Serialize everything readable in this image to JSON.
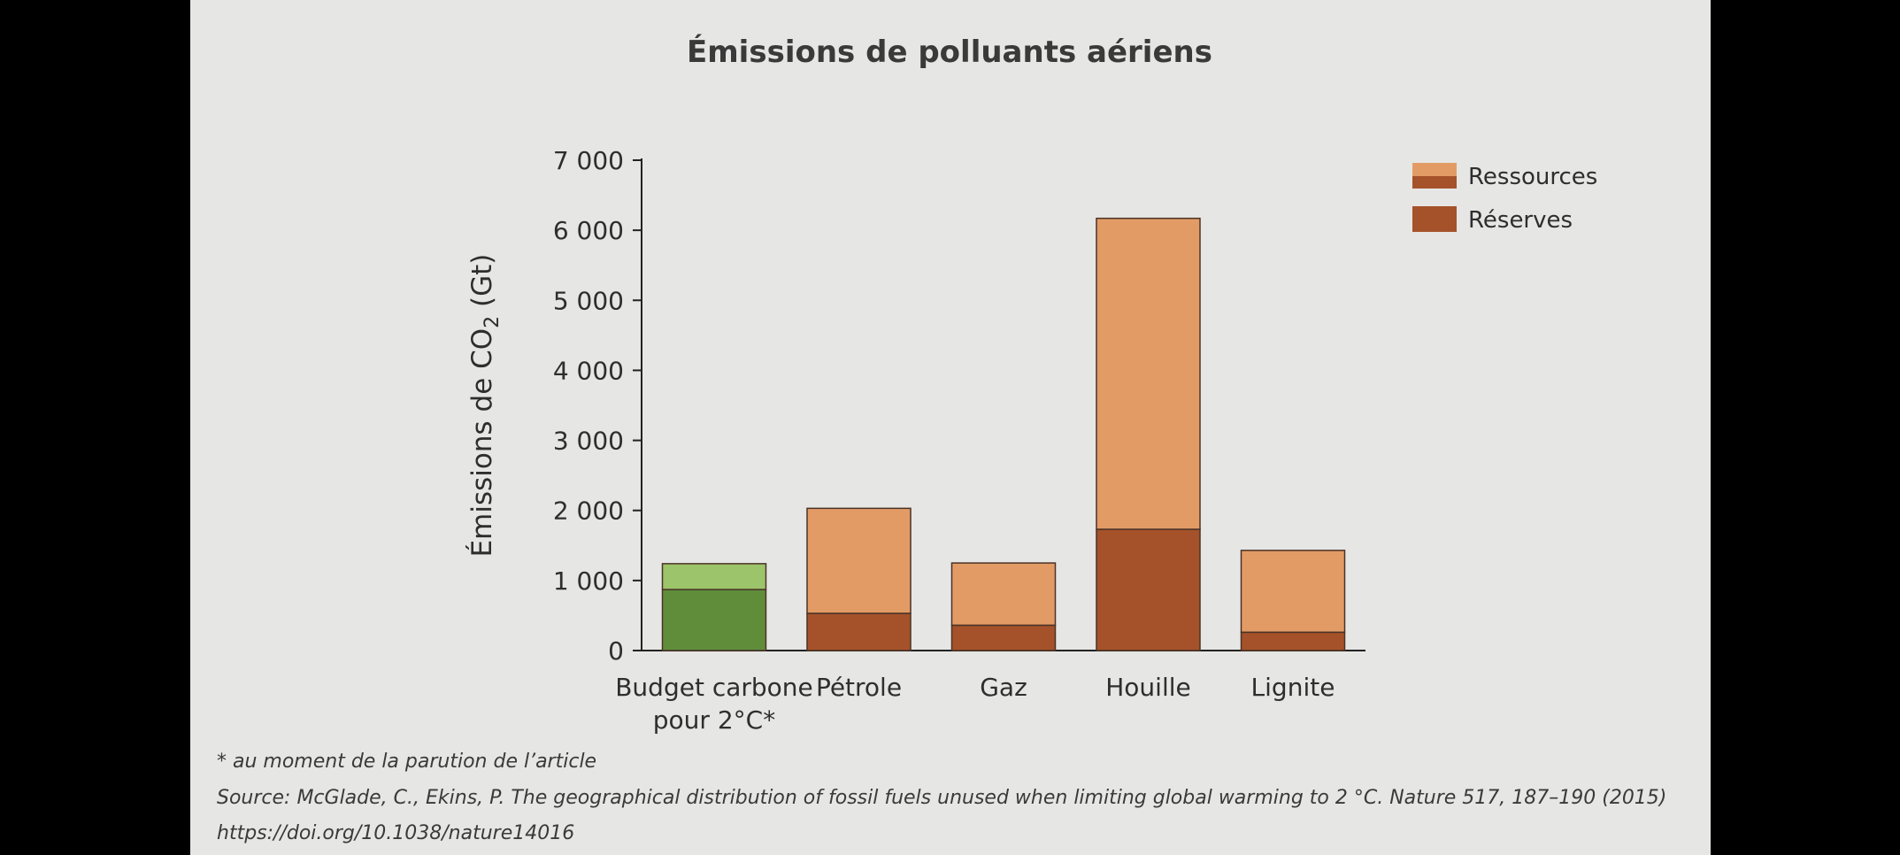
{
  "chart_data": {
    "type": "bar",
    "stacked": true,
    "title": "Émissions de polluants aériens",
    "ylabel_prefix": "Émissions de CO",
    "ylabel_subscript": "2",
    "ylabel_suffix": " (Gt)",
    "ylim": [
      0,
      7000
    ],
    "yticks": [
      0,
      1000,
      2000,
      3000,
      4000,
      5000,
      6000,
      7000
    ],
    "ytick_labels": [
      "0",
      "1 000",
      "2 000",
      "3 000",
      "4 000",
      "5 000",
      "6 000",
      "7 000"
    ],
    "grid": false,
    "legend_position": "top-right",
    "categories": [
      {
        "label_lines": [
          "Budget carbone",
          "pour 2°C*"
        ],
        "reserves": 870,
        "total": 1240,
        "colors": {
          "reserves": "#5f8d3a",
          "resources": "#9cc46a"
        }
      },
      {
        "label_lines": [
          "Pétrole"
        ],
        "reserves": 530,
        "total": 2030,
        "colors": {
          "reserves": "#a5522a",
          "resources": "#e39b66"
        }
      },
      {
        "label_lines": [
          "Gaz"
        ],
        "reserves": 360,
        "total": 1250,
        "colors": {
          "reserves": "#a5522a",
          "resources": "#e39b66"
        }
      },
      {
        "label_lines": [
          "Houille"
        ],
        "reserves": 1730,
        "total": 6170,
        "colors": {
          "reserves": "#a5522a",
          "resources": "#e39b66"
        }
      },
      {
        "label_lines": [
          "Lignite"
        ],
        "reserves": 260,
        "total": 1430,
        "colors": {
          "reserves": "#a5522a",
          "resources": "#e39b66"
        }
      }
    ],
    "legend": [
      {
        "label": "Ressources",
        "swatch": "resources"
      },
      {
        "label": "Réserves",
        "swatch": "reserves"
      }
    ]
  },
  "footnote": "* au moment de la parution de l’article",
  "source": "Source: McGlade, C., Ekins, P. The geographical distribution of fossil fuels unused when limiting global warming to 2 °C. Nature 517, 187–190 (2015)",
  "doi": "https://doi.org/10.1038/nature14016"
}
